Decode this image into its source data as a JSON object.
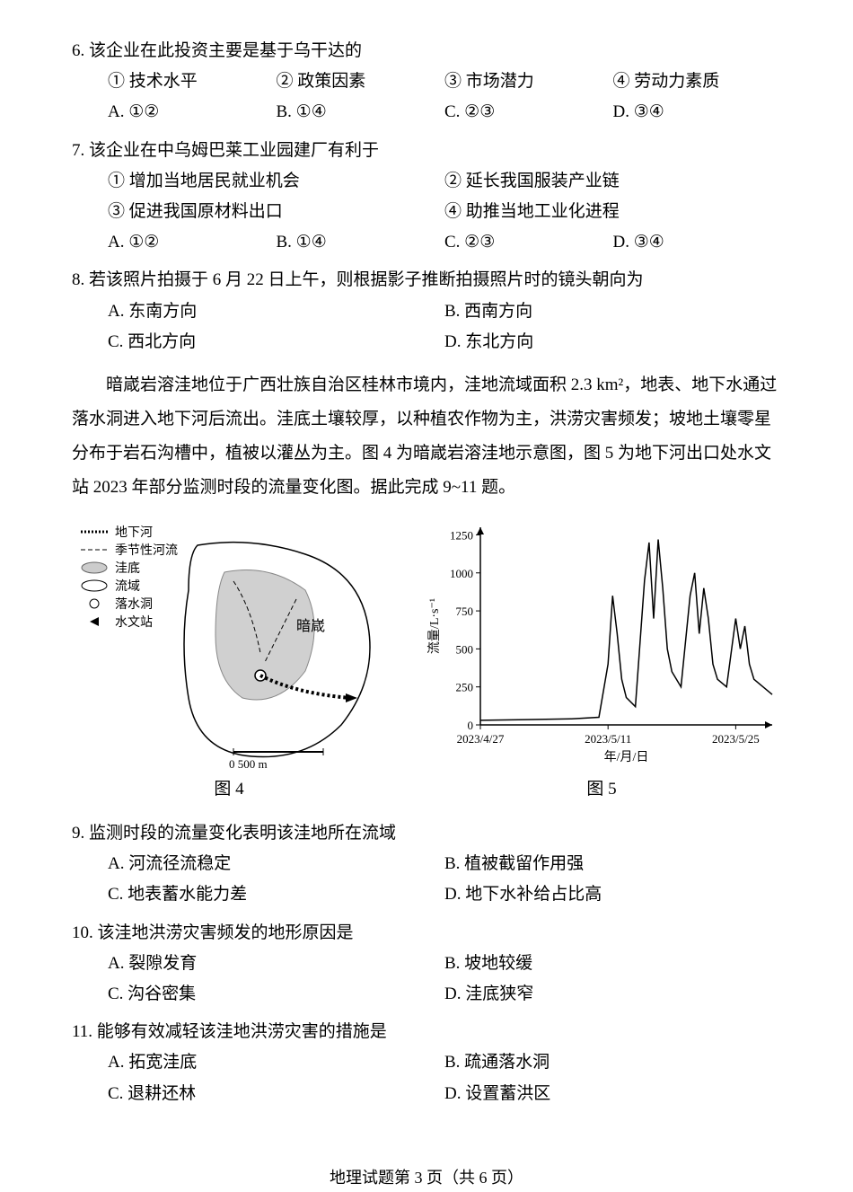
{
  "q6": {
    "num": "6.",
    "text": "该企业在此投资主要是基于乌干达的",
    "sub1": "① 技术水平",
    "sub2": "② 政策因素",
    "sub3": "③ 市场潜力",
    "sub4": "④ 劳动力素质",
    "optA": "A. ①②",
    "optB": "B. ①④",
    "optC": "C. ②③",
    "optD": "D. ③④"
  },
  "q7": {
    "num": "7.",
    "text": "该企业在中乌姆巴莱工业园建厂有利于",
    "sub1": "① 增加当地居民就业机会",
    "sub2": "② 延长我国服装产业链",
    "sub3": "③ 促进我国原材料出口",
    "sub4": "④ 助推当地工业化进程",
    "optA": "A. ①②",
    "optB": "B. ①④",
    "optC": "C. ②③",
    "optD": "D. ③④"
  },
  "q8": {
    "num": "8.",
    "text": "若该照片拍摄于 6 月 22 日上午，则根据影子推断拍摄照片时的镜头朝向为",
    "optA": "A. 东南方向",
    "optB": "B. 西南方向",
    "optC": "C. 西北方向",
    "optD": "D. 东北方向"
  },
  "passage": "暗嵅岩溶洼地位于广西壮族自治区桂林市境内，洼地流域面积 2.3 km²，地表、地下水通过落水洞进入地下河后流出。洼底土壤较厚，以种植农作物为主，洪涝灾害频发；坡地土壤零星分布于岩石沟槽中，植被以灌丛为主。图 4 为暗嵅岩溶洼地示意图，图 5 为地下河出口处水文站 2023 年部分监测时段的流量变化图。据此完成 9~11 题。",
  "fig4": {
    "caption": "图 4",
    "legend": {
      "l1": "地下河",
      "l2": "季节性河流",
      "l3": "洼底",
      "l4": "流域",
      "l5": "落水洞",
      "l6": "水文站"
    },
    "label_anhan": "暗嵅",
    "scale": "0        500 m"
  },
  "fig5": {
    "caption": "图 5",
    "ylabel": "流量/L·s⁻¹",
    "xlabel": "年/月/日",
    "yticks": [
      0,
      250,
      500,
      750,
      1000,
      1250
    ],
    "xticks": [
      "2023/4/27",
      "2023/5/11",
      "2023/5/25"
    ],
    "ylim": [
      0,
      1300
    ],
    "line_color": "#000000",
    "background": "#ffffff",
    "data_points": [
      {
        "x": 0,
        "y": 30
      },
      {
        "x": 5,
        "y": 35
      },
      {
        "x": 10,
        "y": 40
      },
      {
        "x": 13,
        "y": 50
      },
      {
        "x": 14,
        "y": 400
      },
      {
        "x": 14.5,
        "y": 850
      },
      {
        "x": 15,
        "y": 600
      },
      {
        "x": 15.5,
        "y": 300
      },
      {
        "x": 16,
        "y": 180
      },
      {
        "x": 17,
        "y": 120
      },
      {
        "x": 18,
        "y": 950
      },
      {
        "x": 18.5,
        "y": 1200
      },
      {
        "x": 19,
        "y": 700
      },
      {
        "x": 19.5,
        "y": 1220
      },
      {
        "x": 20,
        "y": 900
      },
      {
        "x": 20.5,
        "y": 500
      },
      {
        "x": 21,
        "y": 350
      },
      {
        "x": 22,
        "y": 250
      },
      {
        "x": 23,
        "y": 850
      },
      {
        "x": 23.5,
        "y": 1000
      },
      {
        "x": 24,
        "y": 600
      },
      {
        "x": 24.5,
        "y": 900
      },
      {
        "x": 25,
        "y": 700
      },
      {
        "x": 25.5,
        "y": 400
      },
      {
        "x": 26,
        "y": 300
      },
      {
        "x": 27,
        "y": 250
      },
      {
        "x": 28,
        "y": 700
      },
      {
        "x": 28.5,
        "y": 500
      },
      {
        "x": 29,
        "y": 650
      },
      {
        "x": 29.5,
        "y": 400
      },
      {
        "x": 30,
        "y": 300
      },
      {
        "x": 31,
        "y": 250
      },
      {
        "x": 32,
        "y": 200
      }
    ]
  },
  "q9": {
    "num": "9.",
    "text": "监测时段的流量变化表明该洼地所在流域",
    "optA": "A. 河流径流稳定",
    "optB": "B. 植被截留作用强",
    "optC": "C. 地表蓄水能力差",
    "optD": "D. 地下水补给占比高"
  },
  "q10": {
    "num": "10.",
    "text": "该洼地洪涝灾害频发的地形原因是",
    "optA": "A. 裂隙发育",
    "optB": "B. 坡地较缓",
    "optC": "C. 沟谷密集",
    "optD": "D. 洼底狭窄"
  },
  "q11": {
    "num": "11.",
    "text": "能够有效减轻该洼地洪涝灾害的措施是",
    "optA": "A. 拓宽洼底",
    "optB": "B. 疏通落水洞",
    "optC": "C. 退耕还林",
    "optD": "D. 设置蓄洪区"
  },
  "footer": "地理试题第 3 页（共 6 页）"
}
